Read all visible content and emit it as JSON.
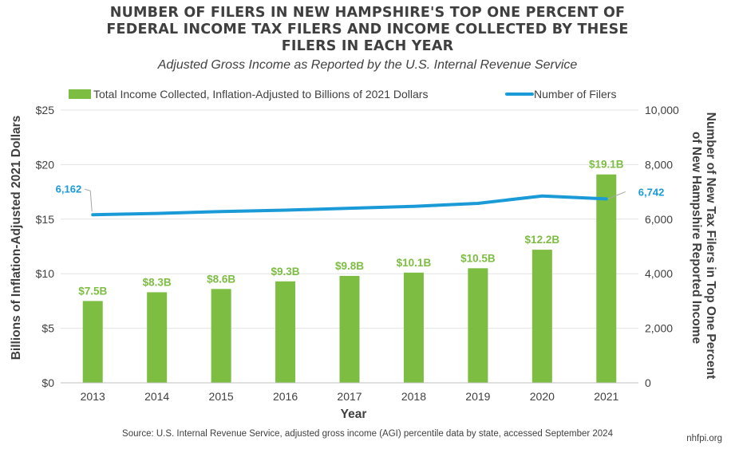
{
  "title_lines": [
    "NUMBER OF FILERS IN NEW HAMPSHIRE'S TOP ONE PERCENT OF",
    "FEDERAL INCOME TAX FILERS AND INCOME COLLECTED BY THESE",
    "FILERS IN EACH YEAR"
  ],
  "subtitle": "Adjusted Gross Income as Reported by the U.S. Internal Revenue Service",
  "source": "Source: U.S. Internal Revenue Service, adjusted gross income (AGI) percentile data by state, accessed September 2024",
  "credit": "nhfpi.org",
  "chart_data": {
    "type": "bar",
    "categories": [
      "2013",
      "2014",
      "2015",
      "2016",
      "2017",
      "2018",
      "2019",
      "2020",
      "2021"
    ],
    "xlabel": "Year",
    "ylabel": "Billions of Inflation-Adjusted 2021 Dollars",
    "y2label_lines": [
      "Number of New Tax Filers in Top One Percent",
      "of New Hampshire Reported Income"
    ],
    "ylim": [
      0,
      25
    ],
    "y_ticks": [
      "$0",
      "$5",
      "$10",
      "$15",
      "$20",
      "$25"
    ],
    "y2lim": [
      0,
      10000
    ],
    "y2_ticks": [
      "0",
      "2,000",
      "4,000",
      "6,000",
      "8,000",
      "10,000"
    ],
    "grid": true,
    "legend_position": "top",
    "series": [
      {
        "name": "Total Income Collected, Inflation-Adjusted to Billions of 2021 Dollars",
        "type": "bar",
        "axis": "left",
        "color": "#7dbd42",
        "values": [
          7.5,
          8.3,
          8.6,
          9.3,
          9.8,
          10.1,
          10.5,
          12.2,
          19.1
        ],
        "labels": [
          "$7.5B",
          "$8.3B",
          "$8.6B",
          "$9.3B",
          "$9.8B",
          "$10.1B",
          "$10.5B",
          "$12.2B",
          "$19.1B"
        ]
      },
      {
        "name": "Number of Filers",
        "type": "line",
        "axis": "right",
        "color": "#1a9ad6",
        "values": [
          6162,
          6210,
          6280,
          6330,
          6400,
          6470,
          6580,
          6850,
          6742
        ],
        "labels": {
          "0": "6,162",
          "8": "6,742"
        }
      }
    ]
  }
}
